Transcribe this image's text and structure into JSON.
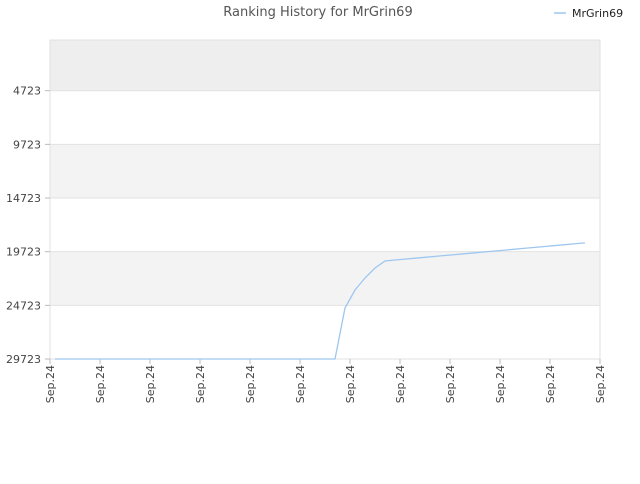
{
  "chart_data": {
    "type": "line",
    "title": "Ranking History for MrGrin69",
    "series": [
      {
        "name": "MrGrin69",
        "color": "#9ec7f0",
        "values": [
          29723,
          29723,
          29723,
          29723,
          29723,
          29723,
          29723,
          29723,
          29723,
          29723,
          29723,
          29723,
          29723,
          29723,
          29723,
          29723,
          29723,
          29723,
          29723,
          29723,
          29723,
          29723,
          29723,
          29723,
          29723,
          29723,
          29723,
          29723,
          29723,
          24971,
          23294,
          22176,
          21244,
          20592,
          20499,
          20415,
          20331,
          20247,
          20163,
          20079,
          19995,
          19911,
          19827,
          19743,
          19659,
          19575,
          19491,
          19407,
          19323,
          19239,
          19155,
          19071,
          18987,
          18903
        ]
      }
    ],
    "x_tick_labels": [
      "Sep.24",
      "Sep.24",
      "Sep.24",
      "Sep.24",
      "Sep.24",
      "Sep.24",
      "Sep.24",
      "Sep.24",
      "Sep.24",
      "Sep.24",
      "Sep.24",
      "Sep.24"
    ],
    "ylim": [
      29723,
      0
    ],
    "yticks": [
      4723,
      9723,
      14723,
      19723,
      24723,
      29723
    ],
    "band_colors": [
      "#eeeeee",
      "#ffffff",
      "#f3f3f3",
      "#ffffff",
      "#f3f3f3",
      "#ffffff"
    ],
    "legend": "top-right"
  }
}
